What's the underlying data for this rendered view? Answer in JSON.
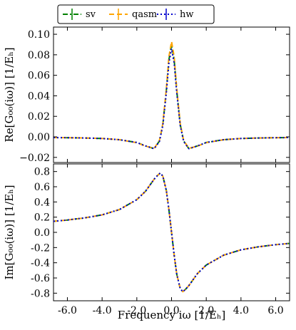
{
  "chart_data": [
    {
      "type": "line",
      "panel": "top",
      "ylabel": "Re[G₀₀(iω)] [1/Eₕ]",
      "xlim": [
        -6.8,
        6.8
      ],
      "ylim": [
        -0.025,
        0.107
      ],
      "yticks": [
        -0.02,
        0.0,
        0.02,
        0.04,
        0.06,
        0.08,
        0.1
      ],
      "ytick_labels": [
        "−0.02",
        "0.00",
        "0.02",
        "0.04",
        "0.06",
        "0.08",
        "0.10"
      ],
      "xticks": [
        -6,
        -4,
        -2,
        0,
        2,
        4,
        6
      ],
      "legend": "top-center",
      "series": [
        {
          "name": "sv",
          "color": "#008000",
          "style": "dashdot",
          "x": [
            -6.8,
            -6.0,
            -5.0,
            -4.0,
            -3.0,
            -2.0,
            -1.5,
            -1.0,
            -0.7,
            -0.5,
            -0.3,
            -0.15,
            0.0,
            0.15,
            0.3,
            0.5,
            0.7,
            1.0,
            1.5,
            2.0,
            3.0,
            4.0,
            5.0,
            6.0,
            6.8
          ],
          "y": [
            -0.0007,
            -0.0008,
            -0.0011,
            -0.0016,
            -0.0028,
            -0.0055,
            -0.0088,
            -0.0115,
            -0.004,
            0.012,
            0.045,
            0.075,
            0.09,
            0.075,
            0.045,
            0.012,
            -0.004,
            -0.0115,
            -0.0088,
            -0.0055,
            -0.0028,
            -0.0016,
            -0.0011,
            -0.0008,
            -0.0007
          ]
        },
        {
          "name": "qasm",
          "color": "#ffa500",
          "style": "dashed",
          "x": [
            -6.8,
            -6.0,
            -5.0,
            -4.0,
            -3.0,
            -2.0,
            -1.5,
            -1.0,
            -0.7,
            -0.5,
            -0.3,
            -0.15,
            0.0,
            0.15,
            0.3,
            0.5,
            0.7,
            1.0,
            1.5,
            2.0,
            3.0,
            4.0,
            5.0,
            6.0,
            6.8
          ],
          "y": [
            -0.0007,
            -0.0008,
            -0.0011,
            -0.0016,
            -0.0028,
            -0.0057,
            -0.009,
            -0.0112,
            -0.0035,
            0.013,
            0.047,
            0.078,
            0.093,
            0.078,
            0.047,
            0.013,
            -0.0035,
            -0.0112,
            -0.009,
            -0.0057,
            -0.0028,
            -0.0016,
            -0.0011,
            -0.0008,
            -0.0007
          ]
        },
        {
          "name": "hw",
          "color": "#0000cd",
          "style": "dotted",
          "x": [
            -6.8,
            -6.0,
            -5.0,
            -4.0,
            -3.0,
            -2.0,
            -1.5,
            -1.0,
            -0.7,
            -0.5,
            -0.3,
            -0.15,
            0.0,
            0.15,
            0.3,
            0.5,
            0.7,
            1.0,
            1.5,
            2.0,
            3.0,
            4.0,
            5.0,
            6.0,
            6.8
          ],
          "y": [
            -0.0007,
            -0.0008,
            -0.0011,
            -0.0016,
            -0.0028,
            -0.0055,
            -0.0088,
            -0.0115,
            -0.0045,
            0.011,
            0.043,
            0.072,
            0.086,
            0.072,
            0.043,
            0.011,
            -0.0045,
            -0.0115,
            -0.0088,
            -0.0055,
            -0.0028,
            -0.0016,
            -0.0011,
            -0.0008,
            -0.0007
          ]
        }
      ]
    },
    {
      "type": "line",
      "panel": "bottom",
      "ylabel": "Im[G₀₀(iω)] [1/Eₕ]",
      "xlabel": "Frequency iω [1/Eₕ]",
      "xlim": [
        -6.8,
        6.8
      ],
      "ylim": [
        -0.9,
        0.9
      ],
      "yticks": [
        -0.8,
        -0.6,
        -0.4,
        -0.2,
        0.0,
        0.2,
        0.4,
        0.6,
        0.8
      ],
      "ytick_labels": [
        "-0.8",
        "-0.6",
        "-0.4",
        "-0.2",
        "0.0",
        "0.2",
        "0.4",
        "0.6",
        "0.8"
      ],
      "xticks": [
        -6,
        -4,
        -2,
        0,
        2,
        4,
        6
      ],
      "xtick_labels": [
        "-6.0",
        "-4.0",
        "-2.0",
        "0.0",
        "2.0",
        "4.0",
        "6.0"
      ],
      "series": [
        {
          "name": "sv",
          "color": "#008000",
          "style": "dashdot",
          "x": [
            -6.8,
            -6.0,
            -5.0,
            -4.0,
            -3.0,
            -2.0,
            -1.5,
            -1.0,
            -0.8,
            -0.65,
            -0.5,
            -0.3,
            -0.15,
            0.0,
            0.15,
            0.3,
            0.5,
            0.65,
            0.8,
            1.0,
            1.5,
            2.0,
            3.0,
            4.0,
            5.0,
            6.0,
            6.8
          ],
          "y": [
            0.145,
            0.162,
            0.19,
            0.23,
            0.3,
            0.43,
            0.54,
            0.7,
            0.75,
            0.78,
            0.74,
            0.55,
            0.3,
            0.0,
            -0.3,
            -0.55,
            -0.74,
            -0.78,
            -0.75,
            -0.7,
            -0.54,
            -0.43,
            -0.3,
            -0.23,
            -0.19,
            -0.162,
            -0.145
          ]
        },
        {
          "name": "qasm",
          "color": "#ffa500",
          "style": "dashed",
          "x": [
            -6.8,
            -6.0,
            -5.0,
            -4.0,
            -3.0,
            -2.0,
            -1.5,
            -1.0,
            -0.8,
            -0.65,
            -0.5,
            -0.3,
            -0.15,
            0.0,
            0.15,
            0.3,
            0.5,
            0.65,
            0.8,
            1.0,
            1.5,
            2.0,
            3.0,
            4.0,
            5.0,
            6.0,
            6.8
          ],
          "y": [
            0.145,
            0.162,
            0.19,
            0.23,
            0.3,
            0.43,
            0.54,
            0.7,
            0.75,
            0.78,
            0.74,
            0.55,
            0.3,
            0.0,
            -0.3,
            -0.55,
            -0.74,
            -0.78,
            -0.75,
            -0.7,
            -0.54,
            -0.43,
            -0.3,
            -0.23,
            -0.19,
            -0.162,
            -0.145
          ]
        },
        {
          "name": "hw",
          "color": "#0000cd",
          "style": "dotted",
          "x": [
            -6.8,
            -6.0,
            -5.0,
            -4.0,
            -3.0,
            -2.0,
            -1.5,
            -1.0,
            -0.8,
            -0.65,
            -0.5,
            -0.3,
            -0.15,
            0.0,
            0.15,
            0.3,
            0.5,
            0.65,
            0.8,
            1.0,
            1.5,
            2.0,
            3.0,
            4.0,
            5.0,
            6.0,
            6.8
          ],
          "y": [
            0.145,
            0.162,
            0.19,
            0.23,
            0.3,
            0.43,
            0.54,
            0.7,
            0.75,
            0.78,
            0.74,
            0.55,
            0.3,
            0.0,
            -0.3,
            -0.55,
            -0.74,
            -0.78,
            -0.75,
            -0.7,
            -0.54,
            -0.43,
            -0.3,
            -0.23,
            -0.19,
            -0.162,
            -0.145
          ]
        }
      ]
    }
  ]
}
